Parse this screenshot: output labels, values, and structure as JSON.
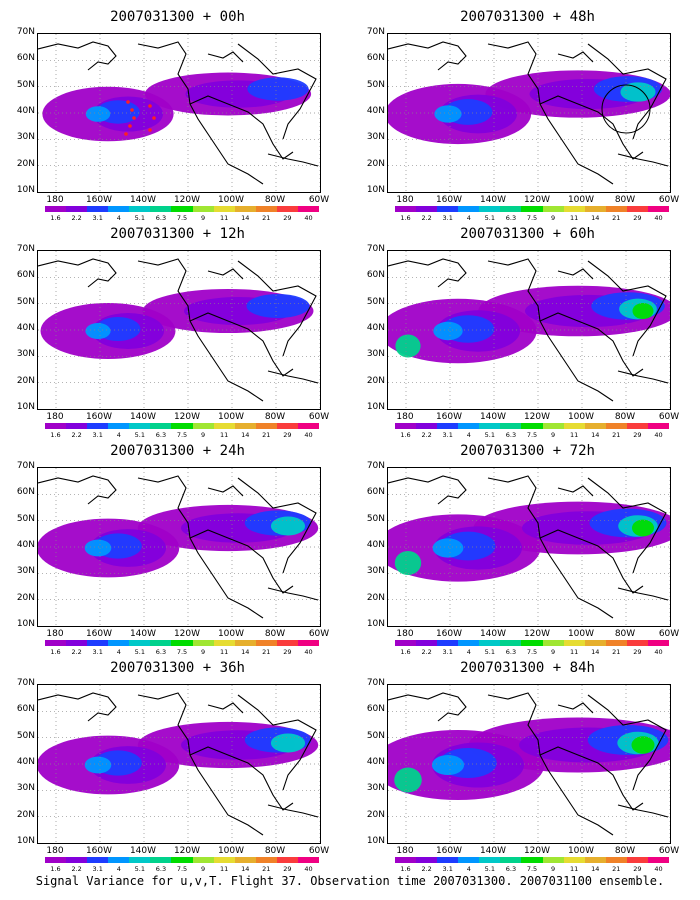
{
  "panels": [
    {
      "title": "2007031300 + 00h",
      "intensity": 0.35,
      "has_targets": true,
      "circle": false
    },
    {
      "title": "2007031300 + 48h",
      "intensity": 0.55,
      "has_targets": false,
      "circle": true
    },
    {
      "title": "2007031300 + 12h",
      "intensity": 0.4,
      "has_targets": false,
      "circle": false
    },
    {
      "title": "2007031300 + 60h",
      "intensity": 0.7,
      "has_targets": false,
      "circle": false
    },
    {
      "title": "2007031300 + 24h",
      "intensity": 0.5,
      "has_targets": false,
      "circle": false
    },
    {
      "title": "2007031300 + 72h",
      "intensity": 0.8,
      "has_targets": false,
      "circle": false
    },
    {
      "title": "2007031300 + 36h",
      "intensity": 0.5,
      "has_targets": false,
      "circle": false
    },
    {
      "title": "2007031300 + 84h",
      "intensity": 0.9,
      "has_targets": false,
      "circle": false
    }
  ],
  "lat_labels": [
    "70N",
    "60N",
    "50N",
    "40N",
    "30N",
    "20N",
    "10N"
  ],
  "lon_labels": [
    "180",
    "160W",
    "140W",
    "120W",
    "100W",
    "80W",
    "60W"
  ],
  "colorbar": {
    "colors": [
      "#a000c8",
      "#8200dc",
      "#1e3cff",
      "#0096ff",
      "#00c8c8",
      "#00d28c",
      "#00dc00",
      "#a0e632",
      "#e6dc32",
      "#e6af2d",
      "#f08228",
      "#fa3c3c",
      "#f00082"
    ],
    "labels": [
      "1.6",
      "2.2",
      "3.1",
      "4",
      "5.1",
      "6.3",
      "7.5",
      "9",
      "11",
      "14",
      "21",
      "29",
      "40"
    ]
  },
  "caption": "Signal Variance for u,v,T. Flight 37. Observation time 2007031300. 2007031100 ensemble."
}
